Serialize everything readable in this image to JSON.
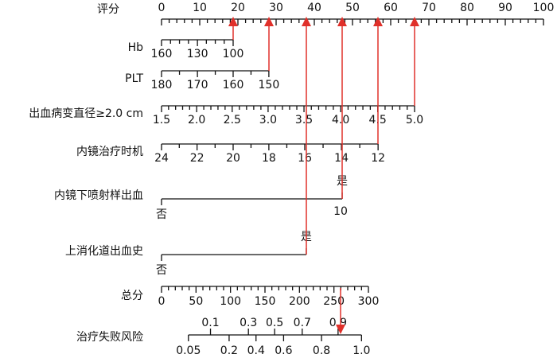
{
  "chart_data": {
    "type": "nomogram",
    "points_axis": {
      "label": "评分",
      "xlim": [
        0,
        100
      ],
      "xticks": [
        0,
        10,
        20,
        30,
        40,
        50,
        60,
        70,
        80,
        90,
        100
      ]
    },
    "rows": [
      {
        "label": "Hb",
        "ticks": [
          {
            "label": "160",
            "points": 0
          },
          {
            "label": "130",
            "points": 9.4
          },
          {
            "label": "100",
            "points": 18.75
          }
        ]
      },
      {
        "label": "PLT",
        "ticks": [
          {
            "label": "180",
            "points": 0
          },
          {
            "label": "170",
            "points": 9.4
          },
          {
            "label": "160",
            "points": 18.75
          },
          {
            "label": "150",
            "points": 28.1
          }
        ]
      },
      {
        "label": "出血病变直径≥2.0 cm",
        "ticks": [
          {
            "label": "1.5",
            "points": 0
          },
          {
            "label": "2.0",
            "points": 9.2
          },
          {
            "label": "2.5",
            "points": 18.5
          },
          {
            "label": "3.0",
            "points": 27.9
          },
          {
            "label": "3.5",
            "points": 37.3
          },
          {
            "label": "4.0",
            "points": 46.9
          },
          {
            "label": "4.5",
            "points": 56.6
          },
          {
            "label": "5.0",
            "points": 66.25
          }
        ]
      },
      {
        "label": "内镜治疗时机",
        "ticks": [
          {
            "label": "24",
            "points": 0
          },
          {
            "label": "22",
            "points": 9.3
          },
          {
            "label": "20",
            "points": 18.75
          },
          {
            "label": "18",
            "points": 28.1
          },
          {
            "label": "16",
            "points": 37.5
          },
          {
            "label": "14",
            "points": 47.1
          },
          {
            "label": "12",
            "points": 56.7
          }
        ]
      },
      {
        "label": "内镜下喷射样出血",
        "ticks": [
          {
            "label": "否",
            "points": 0
          },
          {
            "label": "是",
            "points": 47.3
          }
        ],
        "note": "10"
      },
      {
        "label": "上消化道出血史",
        "ticks": [
          {
            "label": "否",
            "points": 0
          },
          {
            "label": "是",
            "points": 37.9
          }
        ]
      }
    ],
    "total_axis": {
      "label": "总分",
      "xlim": [
        0,
        300
      ],
      "xticks": [
        0,
        50,
        100,
        150,
        200,
        250,
        300
      ]
    },
    "risk_axis": {
      "label": "治疗失败风险",
      "ticks": [
        {
          "label": "0.05",
          "total": 39
        },
        {
          "label": "0.1",
          "total": 71
        },
        {
          "label": "0.2",
          "total": 98
        },
        {
          "label": "0.3",
          "total": 126
        },
        {
          "label": "0.4",
          "total": 137
        },
        {
          "label": "0.5",
          "total": 164
        },
        {
          "label": "0.6",
          "total": 177
        },
        {
          "label": "0.7",
          "total": 204
        },
        {
          "label": "0.8",
          "total": 232
        },
        {
          "label": "0.9",
          "total": 256
        },
        {
          "label": "1.0",
          "total": 290
        }
      ]
    }
  }
}
